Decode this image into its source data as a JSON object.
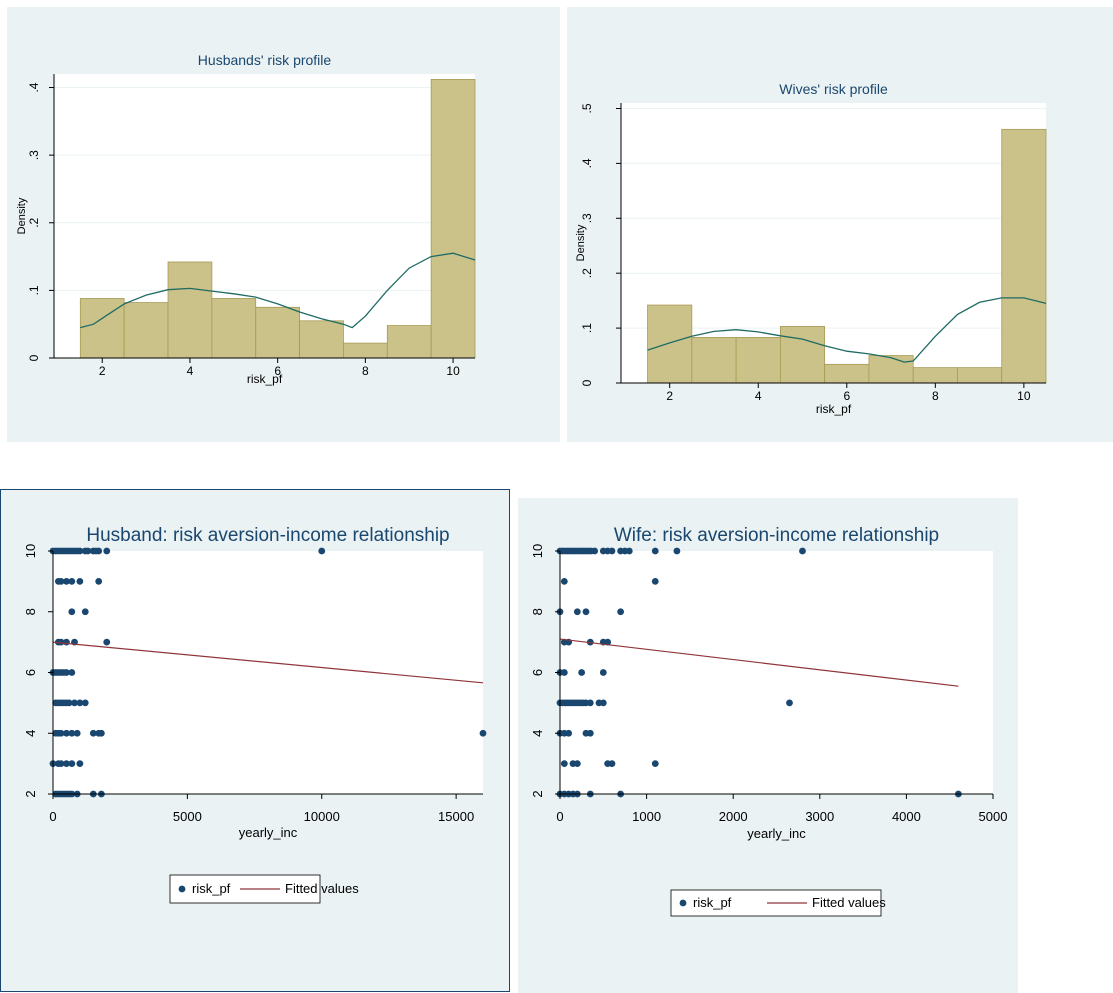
{
  "colors": {
    "background": "#eaf2f3",
    "bar_fill": "#cbc28a",
    "bar_stroke": "#a79a55",
    "density_line": "#1f6b63",
    "scatter_marker": "#1a476f",
    "fit_line": "#90353b",
    "axis": "#000000"
  },
  "chart_data": [
    {
      "type": "histogram",
      "title": "Husbands' risk profile",
      "xlabel": "risk_pf",
      "ylabel": "Density",
      "xlim": [
        0.9,
        10.5
      ],
      "ylim": [
        0,
        0.42
      ],
      "xticks": [
        2,
        4,
        6,
        8,
        10
      ],
      "yticks": [
        0,
        0.1,
        0.2,
        0.3,
        0.4
      ],
      "xtick_labels": [
        "2",
        "4",
        "6",
        "8",
        "10"
      ],
      "ytick_labels": [
        "0",
        ".1",
        ".2",
        ".3",
        ".4"
      ],
      "bins": [
        {
          "x0": 1.5,
          "x1": 2.5,
          "density": 0.088
        },
        {
          "x0": 2.5,
          "x1": 3.5,
          "density": 0.082
        },
        {
          "x0": 3.5,
          "x1": 4.5,
          "density": 0.142
        },
        {
          "x0": 4.5,
          "x1": 5.5,
          "density": 0.088
        },
        {
          "x0": 5.5,
          "x1": 6.5,
          "density": 0.075
        },
        {
          "x0": 6.5,
          "x1": 7.5,
          "density": 0.055
        },
        {
          "x0": 7.5,
          "x1": 8.5,
          "density": 0.022
        },
        {
          "x0": 8.5,
          "x1": 9.5,
          "density": 0.048
        },
        {
          "x0": 9.5,
          "x1": 10.5,
          "density": 0.412
        }
      ],
      "kdensity": {
        "x": [
          1.5,
          1.8,
          2.1,
          2.5,
          3.0,
          3.5,
          4.0,
          4.5,
          5.0,
          5.5,
          6.0,
          6.5,
          7.0,
          7.5,
          7.7,
          8.0,
          8.5,
          9.0,
          9.5,
          10.0,
          10.5
        ],
        "y": [
          0.045,
          0.05,
          0.063,
          0.08,
          0.093,
          0.101,
          0.103,
          0.099,
          0.095,
          0.09,
          0.08,
          0.068,
          0.058,
          0.05,
          0.045,
          0.062,
          0.1,
          0.133,
          0.15,
          0.155,
          0.145
        ]
      },
      "grid": "horizontal"
    },
    {
      "type": "histogram",
      "title": "Wives' risk profile",
      "xlabel": "risk_pf",
      "ylabel": "Density",
      "xlim": [
        0.9,
        10.5
      ],
      "ylim": [
        0,
        0.51
      ],
      "xticks": [
        2,
        4,
        6,
        8,
        10
      ],
      "yticks": [
        0,
        0.1,
        0.2,
        0.3,
        0.4,
        0.5
      ],
      "xtick_labels": [
        "2",
        "4",
        "6",
        "8",
        "10"
      ],
      "ytick_labels": [
        "0",
        ".1",
        ".2",
        ".3",
        ".4",
        ".5"
      ],
      "bins": [
        {
          "x0": 1.5,
          "x1": 2.5,
          "density": 0.142
        },
        {
          "x0": 2.5,
          "x1": 3.5,
          "density": 0.083
        },
        {
          "x0": 3.5,
          "x1": 4.5,
          "density": 0.083
        },
        {
          "x0": 4.5,
          "x1": 5.5,
          "density": 0.103
        },
        {
          "x0": 5.5,
          "x1": 6.5,
          "density": 0.034
        },
        {
          "x0": 6.5,
          "x1": 7.5,
          "density": 0.05
        },
        {
          "x0": 7.5,
          "x1": 8.5,
          "density": 0.028
        },
        {
          "x0": 8.5,
          "x1": 9.5,
          "density": 0.028
        },
        {
          "x0": 9.5,
          "x1": 10.5,
          "density": 0.462
        }
      ],
      "kdensity": {
        "x": [
          1.5,
          2.0,
          2.5,
          3.0,
          3.5,
          4.0,
          4.5,
          5.0,
          5.5,
          6.0,
          6.5,
          7.0,
          7.3,
          7.5,
          8.0,
          8.5,
          9.0,
          9.5,
          10.0,
          10.5
        ],
        "y": [
          0.06,
          0.073,
          0.085,
          0.094,
          0.097,
          0.093,
          0.086,
          0.08,
          0.068,
          0.058,
          0.053,
          0.046,
          0.038,
          0.04,
          0.085,
          0.125,
          0.147,
          0.155,
          0.155,
          0.145
        ]
      },
      "grid": "horizontal"
    },
    {
      "type": "scatter",
      "title": "Husband: risk aversion-income relationship",
      "xlabel": "yearly_inc",
      "ylabel": "",
      "xlim": [
        0,
        16000
      ],
      "ylim": [
        2,
        10
      ],
      "xticks": [
        0,
        5000,
        10000,
        15000
      ],
      "yticks": [
        2,
        4,
        6,
        8,
        10
      ],
      "xtick_labels": [
        "0",
        "5000",
        "10000",
        "15000"
      ],
      "ytick_labels": [
        "2",
        "4",
        "6",
        "8",
        "10"
      ],
      "series": [
        {
          "name": "risk_pf",
          "kind": "scatter",
          "x": [
            0,
            100,
            200,
            300,
            400,
            500,
            600,
            700,
            800,
            900,
            1000,
            1200,
            1300,
            1500,
            1600,
            1700,
            2000,
            10000,
            200,
            300,
            500,
            700,
            1000,
            1700,
            700,
            1200,
            200,
            300,
            500,
            800,
            2000,
            0,
            100,
            200,
            300,
            400,
            500,
            700,
            100,
            200,
            300,
            400,
            500,
            600,
            800,
            1000,
            1200,
            100,
            200,
            300,
            500,
            700,
            900,
            1500,
            1700,
            1800,
            16000,
            0,
            200,
            300,
            500,
            700,
            1000,
            100,
            200,
            300,
            400,
            500,
            600,
            700,
            900,
            1500,
            1800
          ],
          "y": [
            10,
            10,
            10,
            10,
            10,
            10,
            10,
            10,
            10,
            10,
            10,
            10,
            10,
            10,
            10,
            10,
            10,
            10,
            9,
            9,
            9,
            9,
            9,
            9,
            8,
            8,
            7,
            7,
            7,
            7,
            7,
            6,
            6,
            6,
            6,
            6,
            6,
            6,
            5,
            5,
            5,
            5,
            5,
            5,
            5,
            5,
            5,
            4,
            4,
            4,
            4,
            4,
            4,
            4,
            4,
            4,
            4,
            3,
            3,
            3,
            3,
            3,
            3,
            2,
            2,
            2,
            2,
            2,
            2,
            2,
            2,
            2,
            2
          ]
        },
        {
          "name": "Fitted values",
          "kind": "line",
          "x": [
            0,
            16000
          ],
          "y": [
            7.0,
            5.66
          ]
        }
      ],
      "legend": "bottom",
      "grid": "none"
    },
    {
      "type": "scatter",
      "title": "Wife: risk aversion-income relationship",
      "xlabel": "yearly_inc",
      "ylabel": "",
      "xlim": [
        0,
        5000
      ],
      "ylim": [
        2,
        10
      ],
      "xticks": [
        0,
        1000,
        2000,
        3000,
        4000,
        5000
      ],
      "yticks": [
        2,
        4,
        6,
        8,
        10
      ],
      "xtick_labels": [
        "0",
        "1000",
        "2000",
        "3000",
        "4000",
        "5000"
      ],
      "ytick_labels": [
        "2",
        "4",
        "6",
        "8",
        "10"
      ],
      "series": [
        {
          "name": "risk_pf",
          "kind": "scatter",
          "x": [
            0,
            30,
            60,
            90,
            120,
            150,
            180,
            210,
            240,
            270,
            300,
            330,
            360,
            400,
            500,
            550,
            600,
            700,
            750,
            800,
            1100,
            1350,
            2800,
            50,
            1100,
            0,
            200,
            300,
            700,
            50,
            100,
            350,
            500,
            550,
            0,
            50,
            250,
            500,
            0,
            30,
            60,
            90,
            120,
            150,
            180,
            210,
            240,
            270,
            300,
            350,
            450,
            500,
            2650,
            0,
            50,
            100,
            300,
            350,
            50,
            150,
            200,
            550,
            600,
            1100,
            0,
            50,
            100,
            150,
            200,
            350,
            700,
            4600
          ],
          "y": [
            10,
            10,
            10,
            10,
            10,
            10,
            10,
            10,
            10,
            10,
            10,
            10,
            10,
            10,
            10,
            10,
            10,
            10,
            10,
            10,
            10,
            10,
            10,
            9,
            9,
            8,
            8,
            8,
            8,
            7,
            7,
            7,
            7,
            7,
            6,
            6,
            6,
            6,
            5,
            5,
            5,
            5,
            5,
            5,
            5,
            5,
            5,
            5,
            5,
            5,
            5,
            5,
            5,
            4,
            4,
            4,
            4,
            4,
            3,
            3,
            3,
            3,
            3,
            3,
            2,
            2,
            2,
            2,
            2,
            2,
            2,
            2
          ]
        },
        {
          "name": "Fitted values",
          "kind": "line",
          "x": [
            0,
            4600
          ],
          "y": [
            7.1,
            5.55
          ]
        }
      ],
      "legend": "bottom",
      "grid": "none"
    }
  ]
}
